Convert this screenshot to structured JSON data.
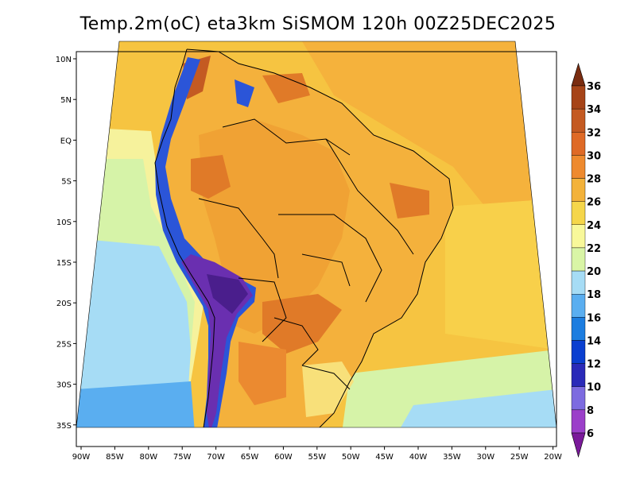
{
  "title": "Temp.2m(oC) eta3km SiSMOM 120h 00Z25DEC2025",
  "lat_labels": [
    "10N",
    "5N",
    "EQ",
    "5S",
    "10S",
    "15S",
    "20S",
    "25S",
    "30S",
    "35S"
  ],
  "lon_labels": [
    "90W",
    "85W",
    "80W",
    "75W",
    "70W",
    "65W",
    "60W",
    "55W",
    "50W",
    "45W",
    "40W",
    "35W",
    "30W",
    "25W",
    "20W"
  ],
  "colorbar": {
    "labels": [
      "6",
      "8",
      "10",
      "12",
      "14",
      "16",
      "18",
      "20",
      "22",
      "24",
      "26",
      "28",
      "30",
      "32",
      "34",
      "36"
    ],
    "colors": [
      "#7a1a9a",
      "#9b3fc9",
      "#7d6be0",
      "#2a2ab8",
      "#0a3fd0",
      "#1c7de0",
      "#5aaef0",
      "#a6dcf5",
      "#d9f5a6",
      "#f8f89a",
      "#f5d64a",
      "#f3b23a",
      "#ee8a2e",
      "#df6a26",
      "#c45a22",
      "#a64418",
      "#7a2c10"
    ]
  },
  "fields": {
    "ocean_warm": "#f5b23c",
    "ocean_mid": "#f8d04a",
    "ocean_cool": "#f6f29c",
    "ocean_cold": "#d6f3a8",
    "ocean_colder": "#a6dcf5",
    "ocean_coldest": "#5aaef0",
    "land_hot": "#eb8a30",
    "land_warm": "#f4b13c",
    "andes_cold": "#6a2fb0",
    "andes_mid": "#2b55d8",
    "border": "#000000"
  }
}
